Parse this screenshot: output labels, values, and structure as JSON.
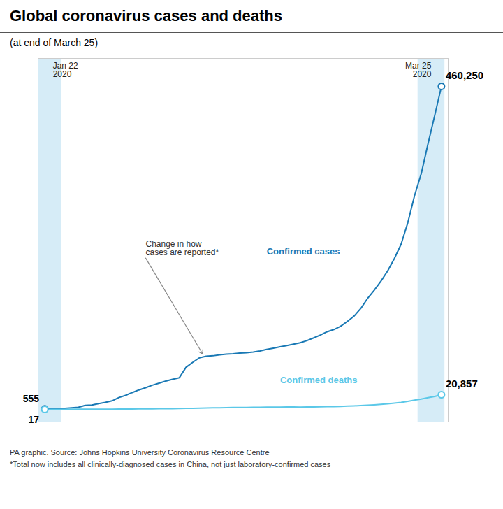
{
  "chart_data": {
    "type": "line",
    "title": "Global coronavirus cases and deaths",
    "subtitle": "(at end of March 25)",
    "series": [
      {
        "name": "Confirmed cases",
        "color": "#1878b4",
        "values": [
          555,
          654,
          941,
          1434,
          2118,
          2927,
          5578,
          6166,
          8234,
          9927,
          12038,
          16787,
          19881,
          23892,
          27635,
          30817,
          34448,
          37261,
          40235,
          42758,
          44921,
          59805,
          66885,
          73437,
          75580,
          76269,
          77673,
          78651,
          79205,
          80026,
          80589,
          81591,
          83113,
          85403,
          87137,
          89068,
          90869,
          92840,
          94843,
          97889,
          101784,
          105836,
          110574,
          113702,
          118319,
          125260,
          132758,
          143662,
          157844,
          169577,
          182555,
          197146,
          214894,
          235232,
          266073,
          304524,
          335955,
          378235,
          418690,
          460250
        ],
        "value_labels": [
          "555",
          null,
          null,
          null,
          null,
          null,
          null,
          null,
          null,
          null,
          null,
          null,
          null,
          null,
          null,
          null,
          null,
          null,
          null,
          null,
          null,
          null,
          null,
          null,
          null,
          null,
          null,
          null,
          null,
          null,
          null,
          null,
          null,
          null,
          null,
          null,
          null,
          null,
          null,
          null,
          null,
          null,
          null,
          null,
          null,
          null,
          null,
          null,
          null,
          null,
          null,
          null,
          null,
          null,
          null,
          null,
          null,
          null,
          null,
          "460,250"
        ]
      },
      {
        "name": "Confirmed deaths",
        "color": "#5bc8e8",
        "values": [
          17,
          18,
          26,
          42,
          56,
          82,
          131,
          133,
          171,
          213,
          259,
          362,
          426,
          492,
          565,
          637,
          724,
          813,
          906,
          1013,
          1113,
          1369,
          1523,
          1669,
          2009,
          2126,
          2247,
          2360,
          2618,
          2699,
          2763,
          2872,
          2941,
          3120,
          3203,
          3288,
          3387,
          3486,
          3288,
          3405,
          3499,
          3600,
          3827,
          3994,
          4262,
          4614,
          4955,
          5390,
          5850,
          6440,
          7154,
          7905,
          8810,
          9838,
          11295,
          13049,
          14657,
          16514,
          18440,
          20857
        ],
        "value_labels": [
          "17",
          null,
          null,
          null,
          null,
          null,
          null,
          null,
          null,
          null,
          null,
          null,
          null,
          null,
          null,
          null,
          null,
          null,
          null,
          null,
          null,
          null,
          null,
          null,
          null,
          null,
          null,
          null,
          null,
          null,
          null,
          null,
          null,
          null,
          null,
          null,
          null,
          null,
          null,
          null,
          null,
          null,
          null,
          null,
          null,
          null,
          null,
          null,
          null,
          null,
          null,
          null,
          null,
          null,
          null,
          null,
          null,
          null,
          null,
          "20,857"
        ]
      }
    ],
    "ylim": [
      -18000,
      500000
    ],
    "tick_labels": false,
    "grid": false,
    "annotations": [
      {
        "text": "Jan 22\n2020",
        "index": 0,
        "color": "#d6ecf7"
      },
      {
        "text": "Mar 25\n2020",
        "index": 59,
        "color": "#d6ecf7"
      },
      {
        "text": "Change in how\ncases are reported*",
        "index": 24,
        "series": "Confirmed cases"
      }
    ],
    "source": "PA graphic. Source: Johns Hopkins University Coronavirus Resource Centre",
    "note": "*Total now includes all clinically-diagnosed cases in China, not just laboratory-confirmed cases"
  }
}
